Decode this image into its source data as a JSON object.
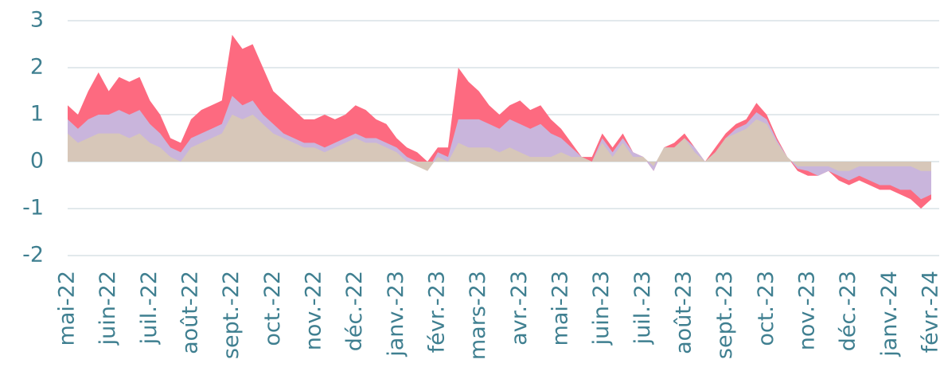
{
  "chart_data": {
    "type": "area",
    "categories": [
      "mai-22",
      null,
      null,
      null,
      "juin-22",
      null,
      null,
      null,
      "juil.-22",
      null,
      null,
      null,
      "août-22",
      null,
      null,
      null,
      "sept.-22",
      null,
      null,
      null,
      "oct.-22",
      null,
      null,
      null,
      "nov.-22",
      null,
      null,
      null,
      "déc.-22",
      null,
      null,
      null,
      "janv.-23",
      null,
      null,
      null,
      "févr.-23",
      null,
      null,
      null,
      "mars-23",
      null,
      null,
      null,
      "avr.-23",
      null,
      null,
      null,
      "mai-23",
      null,
      null,
      null,
      "juin-23",
      null,
      null,
      null,
      "juil.-23",
      null,
      null,
      null,
      "août-23",
      null,
      null,
      null,
      "sept.-23",
      null,
      null,
      null,
      "oct.-23",
      null,
      null,
      null,
      "nov.-23",
      null,
      null,
      null,
      "déc.-23",
      null,
      null,
      null,
      "janv.-24",
      null,
      null,
      null,
      "févr.-24"
    ],
    "series": [
      {
        "color": "#fd6a80",
        "values": [
          1.2,
          1.0,
          1.5,
          1.9,
          1.5,
          1.8,
          1.7,
          1.8,
          1.3,
          1.0,
          0.5,
          0.4,
          0.9,
          1.1,
          1.2,
          1.3,
          2.7,
          2.4,
          2.5,
          2.0,
          1.5,
          1.3,
          1.1,
          0.9,
          0.9,
          1.0,
          0.9,
          1.0,
          1.2,
          1.1,
          0.9,
          0.8,
          0.5,
          0.3,
          0.2,
          0.0,
          0.3,
          0.3,
          2.0,
          1.7,
          1.5,
          1.2,
          1.0,
          1.2,
          1.3,
          1.1,
          1.2,
          0.9,
          0.7,
          0.4,
          0.1,
          0.1,
          0.6,
          0.3,
          0.6,
          0.2,
          0.1,
          -0.2,
          0.3,
          0.4,
          0.6,
          0.3,
          0.0,
          0.3,
          0.6,
          0.8,
          0.9,
          1.25,
          1.0,
          0.5,
          0.1,
          -0.2,
          -0.3,
          -0.3,
          -0.2,
          -0.4,
          -0.5,
          -0.4,
          -0.5,
          -0.6,
          -0.6,
          -0.7,
          -0.8,
          -1.0,
          -0.8
        ]
      },
      {
        "color": "#c9b5dc",
        "values": [
          0.9,
          0.7,
          0.9,
          1.0,
          1.0,
          1.1,
          1.0,
          1.1,
          0.8,
          0.6,
          0.3,
          0.2,
          0.5,
          0.6,
          0.7,
          0.8,
          1.4,
          1.2,
          1.3,
          1.0,
          0.8,
          0.6,
          0.5,
          0.4,
          0.4,
          0.3,
          0.4,
          0.5,
          0.6,
          0.5,
          0.5,
          0.4,
          0.3,
          0.1,
          0.0,
          -0.2,
          0.2,
          0.1,
          0.9,
          0.9,
          0.9,
          0.8,
          0.7,
          0.9,
          0.8,
          0.7,
          0.8,
          0.6,
          0.5,
          0.3,
          0.1,
          0.0,
          0.5,
          0.2,
          0.5,
          0.2,
          0.1,
          -0.2,
          0.3,
          0.3,
          0.5,
          0.3,
          0.0,
          0.2,
          0.5,
          0.7,
          0.8,
          1.05,
          0.9,
          0.45,
          0.1,
          -0.15,
          -0.2,
          -0.3,
          -0.2,
          -0.3,
          -0.4,
          -0.3,
          -0.4,
          -0.5,
          -0.5,
          -0.6,
          -0.6,
          -0.8,
          -0.7
        ]
      },
      {
        "color": "#d7c7b9",
        "values": [
          0.6,
          0.4,
          0.5,
          0.6,
          0.6,
          0.6,
          0.5,
          0.6,
          0.4,
          0.3,
          0.1,
          0.0,
          0.3,
          0.4,
          0.5,
          0.6,
          1.0,
          0.9,
          1.0,
          0.8,
          0.6,
          0.5,
          0.4,
          0.3,
          0.3,
          0.2,
          0.3,
          0.4,
          0.5,
          0.4,
          0.4,
          0.3,
          0.2,
          0.0,
          -0.1,
          -0.2,
          0.1,
          0.0,
          0.4,
          0.3,
          0.3,
          0.3,
          0.2,
          0.3,
          0.2,
          0.1,
          0.1,
          0.1,
          0.2,
          0.1,
          0.1,
          0.0,
          0.4,
          0.1,
          0.4,
          0.1,
          0.1,
          -0.1,
          0.3,
          0.3,
          0.5,
          0.2,
          0.0,
          0.2,
          0.5,
          0.6,
          0.7,
          0.9,
          0.8,
          0.4,
          0.1,
          -0.1,
          -0.1,
          -0.1,
          -0.1,
          -0.2,
          -0.2,
          -0.1,
          -0.1,
          -0.1,
          -0.1,
          -0.1,
          -0.1,
          -0.2,
          -0.2
        ]
      }
    ],
    "ylim": [
      -2,
      3
    ],
    "yticks": [
      -2,
      -1,
      0,
      1,
      2,
      3
    ],
    "grid": true
  }
}
